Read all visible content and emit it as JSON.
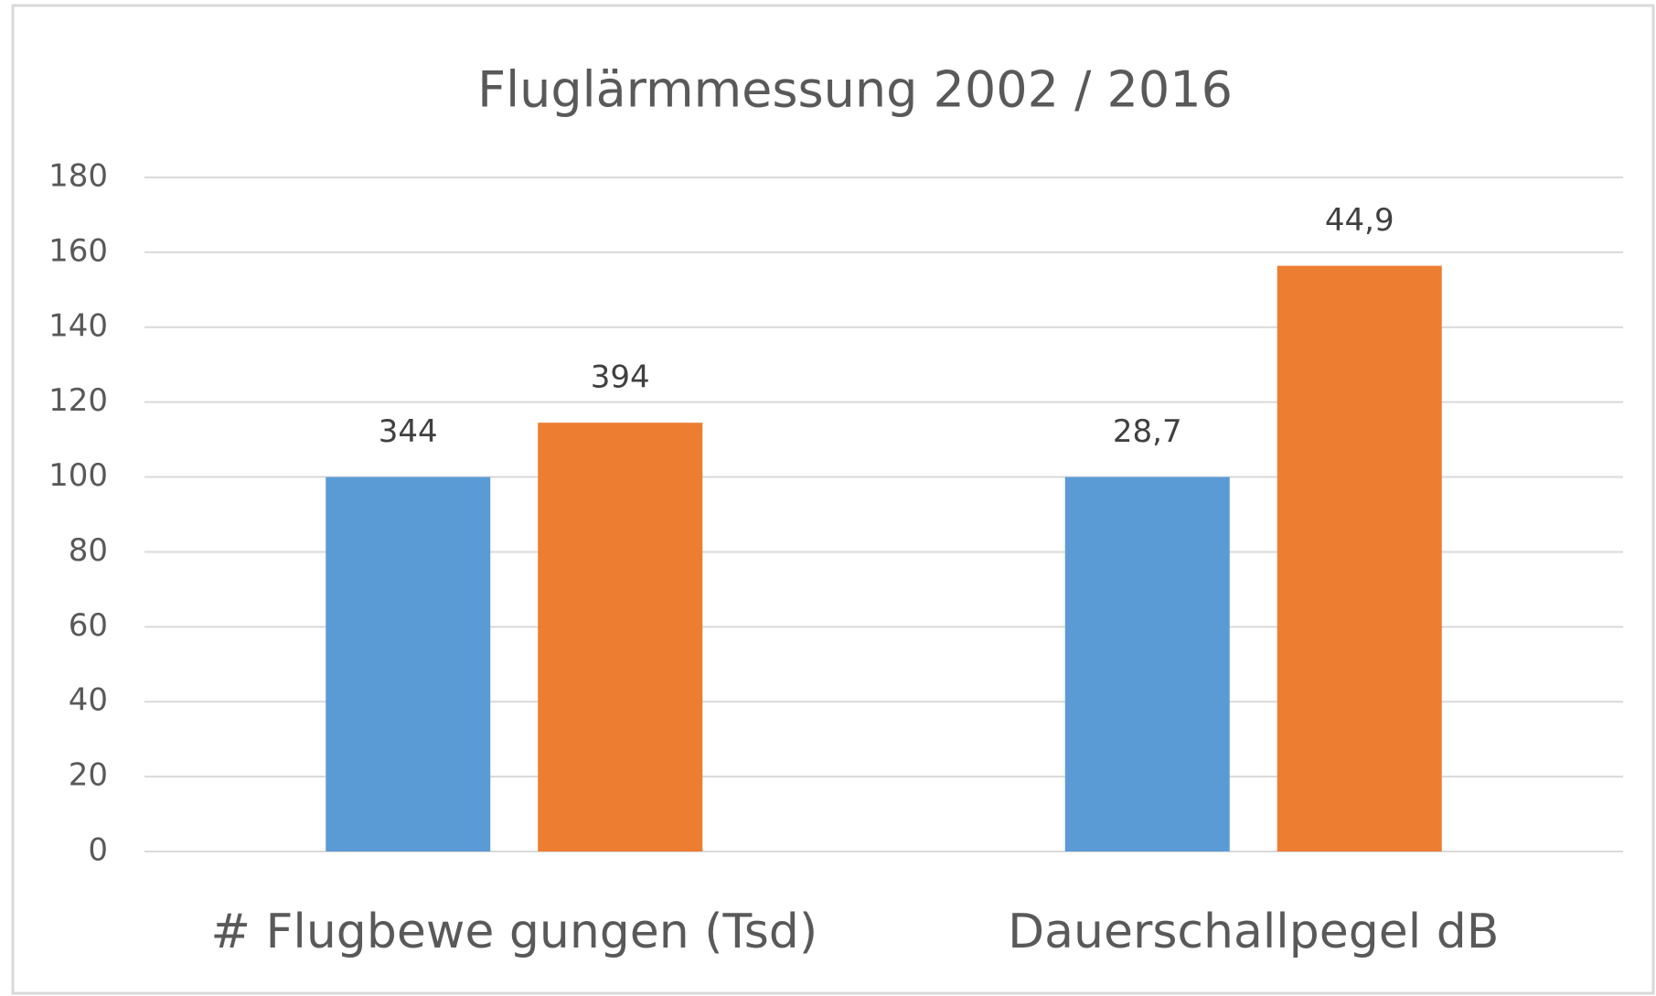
{
  "chart_data": {
    "type": "bar",
    "title": "Fluglärmmessung 2002 / 2016",
    "categories": [
      "# Flugbewe gungen (Tsd)",
      "Dauerschallpegel dB"
    ],
    "series": [
      {
        "color": "#5b9bd5",
        "values": [
          100,
          100
        ],
        "data_labels": [
          "344",
          "28,7"
        ]
      },
      {
        "color": "#ed7d31",
        "values": [
          114.5,
          156.4
        ],
        "data_labels": [
          "394",
          "44,9"
        ]
      }
    ],
    "ylim": [
      0,
      180
    ],
    "yticks": [
      0,
      20,
      40,
      60,
      80,
      100,
      120,
      140,
      160,
      180
    ],
    "grid": true
  }
}
